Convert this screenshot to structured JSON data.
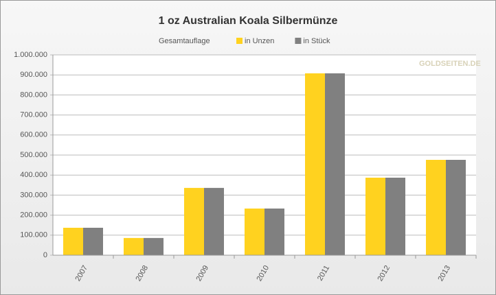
{
  "chart_data": {
    "type": "bar",
    "title": "1 oz Australian Koala Silbermünze",
    "legend_title": "Gesamtauflage",
    "watermark": "GOLDSEITEN.DE",
    "categories": [
      "2007",
      "2008",
      "2009",
      "2010",
      "2011",
      "2012",
      "2013"
    ],
    "series": [
      {
        "name": "in Unzen",
        "color": "#ffd21f",
        "values": [
          137000,
          86000,
          336000,
          233000,
          908000,
          387000,
          476000
        ]
      },
      {
        "name": "in Stück",
        "color": "#808080",
        "values": [
          137000,
          86000,
          336000,
          233000,
          908000,
          387000,
          476000
        ]
      }
    ],
    "ylim": [
      0,
      1000000
    ],
    "yticks": [
      0,
      {
        "value": 100000,
        "label": "100.000"
      },
      {
        "value": 200000,
        "label": "200.000"
      },
      {
        "value": 300000,
        "label": "300.000"
      },
      {
        "value": 400000,
        "label": "400.000"
      },
      {
        "value": 500000,
        "label": "500.000"
      },
      {
        "value": 600000,
        "label": "600.000"
      },
      {
        "value": 700000,
        "label": "700.000"
      },
      {
        "value": 800000,
        "label": "800.000"
      },
      {
        "value": 900000,
        "label": "900.000"
      },
      {
        "value": 1000000,
        "label": "1.000.000"
      }
    ],
    "grid": true
  }
}
